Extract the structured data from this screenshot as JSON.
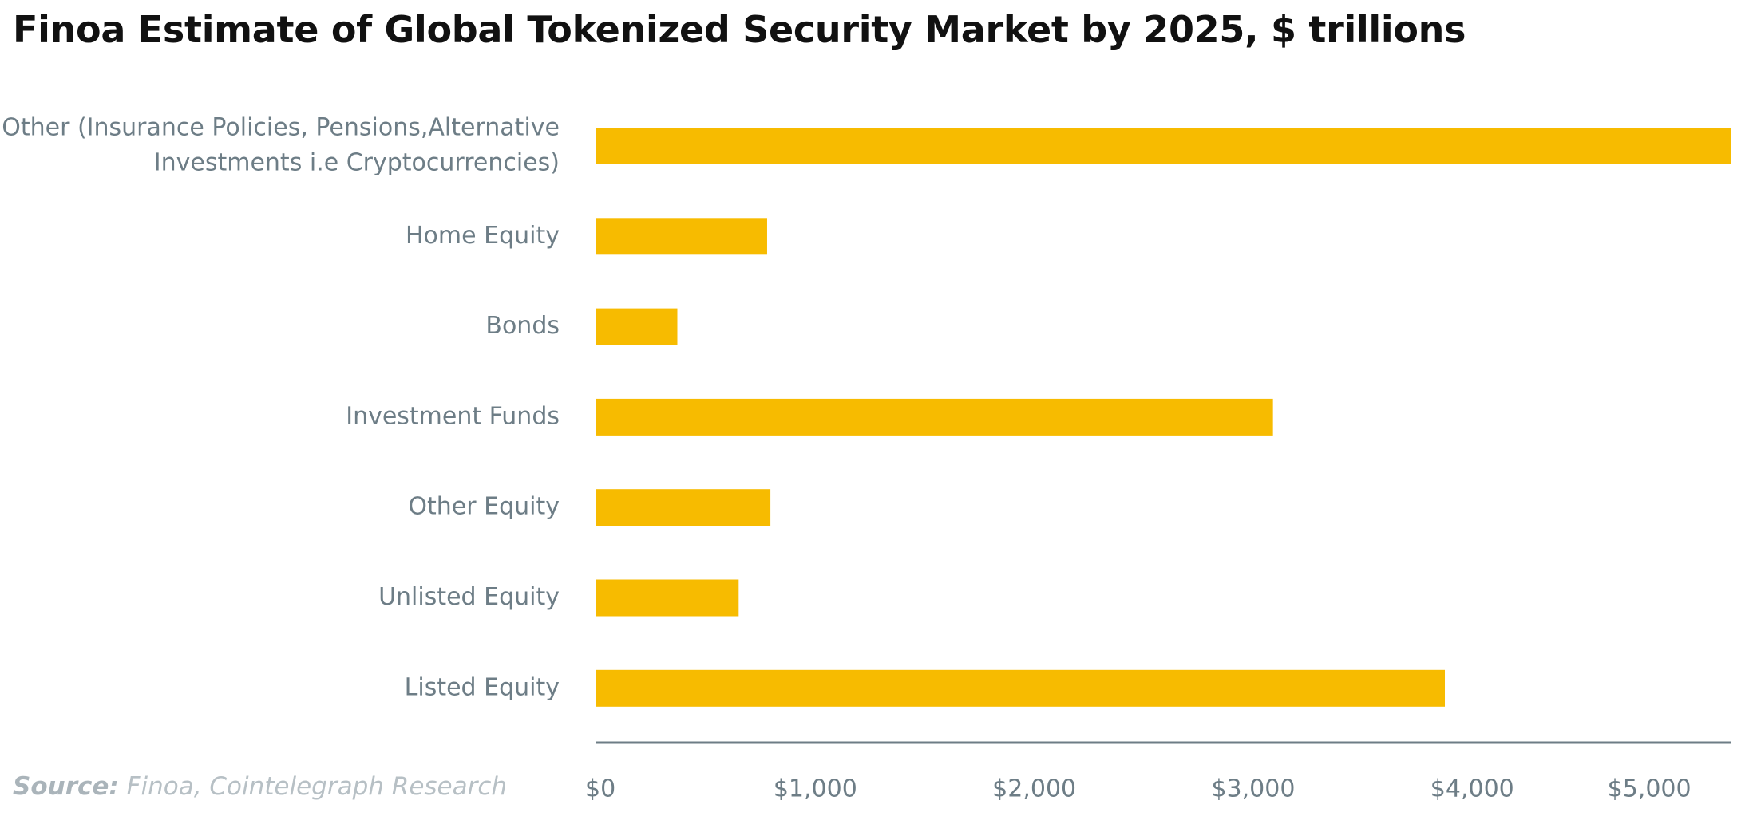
{
  "chart_data": {
    "type": "bar",
    "orientation": "horizontal",
    "title": "Finoa Estimate of Global Tokenized Security Market by 2025, $ trillions",
    "categories": [
      [
        "Other (Insurance Policies, Pensions,Alternative",
        "Investments i.e Cryptocurrencies)"
      ],
      [
        "Home Equity"
      ],
      [
        "Bonds"
      ],
      [
        "Investment Funds"
      ],
      [
        "Other Equity"
      ],
      [
        "Unlisted Equity"
      ],
      [
        "Listed Equity"
      ]
    ],
    "values": [
      5180,
      780,
      370,
      3090,
      795,
      650,
      3875
    ],
    "xlim": [
      0,
      5180
    ],
    "xticks": [
      0,
      1000,
      2000,
      3000,
      4000,
      5000
    ],
    "xtick_labels": [
      "$0",
      "$1,000",
      "$2,000",
      "$3,000",
      "$4,000",
      "$5,000"
    ],
    "bar_color": "#f7bb00",
    "axis_color": "#6d7d86",
    "grid": false,
    "legend": "none"
  },
  "source": {
    "label": "Source:",
    "text": "Finoa, Cointelegraph Research"
  }
}
